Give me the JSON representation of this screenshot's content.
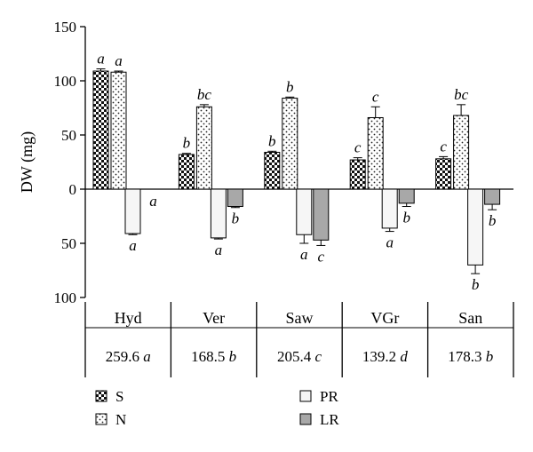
{
  "chart_data": {
    "type": "bar",
    "ylabel": "DW (mg)",
    "y_ticks": [
      {
        "label": "150",
        "value": 150
      },
      {
        "label": "100",
        "value": 100
      },
      {
        "label": "50",
        "value": 50
      },
      {
        "label": "0",
        "value": 0
      },
      {
        "label": "50",
        "value": -50
      },
      {
        "label": "100",
        "value": -100
      }
    ],
    "ylim": [
      -100,
      150
    ],
    "categories": [
      "Hyd",
      "Ver",
      "Saw",
      "VGr",
      "San"
    ],
    "totals": [
      {
        "value": "259.6",
        "letter": "a"
      },
      {
        "value": "168.5",
        "letter": "b"
      },
      {
        "value": "205.4",
        "letter": "c"
      },
      {
        "value": "139.2",
        "letter": "d"
      },
      {
        "value": "178.3",
        "letter": "b"
      }
    ],
    "series": [
      {
        "name": "S",
        "pattern": "checker",
        "values": [
          109,
          32,
          34,
          27,
          28
        ],
        "errors": [
          2,
          1,
          1,
          2,
          2
        ],
        "letters": [
          "a",
          "b",
          "b",
          "c",
          "c"
        ]
      },
      {
        "name": "N",
        "pattern": "dots",
        "values": [
          108,
          76,
          84,
          66,
          68
        ],
        "errors": [
          1,
          2,
          1,
          10,
          10
        ],
        "letters": [
          "a",
          "bc",
          "b",
          "c",
          "bc"
        ]
      },
      {
        "name": "PR",
        "pattern": "white",
        "values": [
          -41,
          -45,
          -42,
          -36,
          -70
        ],
        "errors": [
          1,
          1,
          8,
          3,
          8
        ],
        "letters": [
          "a",
          "a",
          "a",
          "a",
          "b"
        ]
      },
      {
        "name": "LR",
        "pattern": "gray",
        "values": [
          null,
          -16,
          -47,
          -13,
          -14
        ],
        "errors": [
          null,
          1,
          5,
          3,
          5
        ],
        "letters": [
          "a",
          "b",
          "c",
          "b",
          "b"
        ]
      }
    ],
    "legend": [
      {
        "name": "S",
        "pattern": "checker"
      },
      {
        "name": "N",
        "pattern": "dots"
      },
      {
        "name": "PR",
        "pattern": "white"
      },
      {
        "name": "LR",
        "pattern": "gray"
      }
    ],
    "colors": {
      "axis": "#000000",
      "gray": "#a8a8a8",
      "white": "#f6f6f6"
    }
  }
}
